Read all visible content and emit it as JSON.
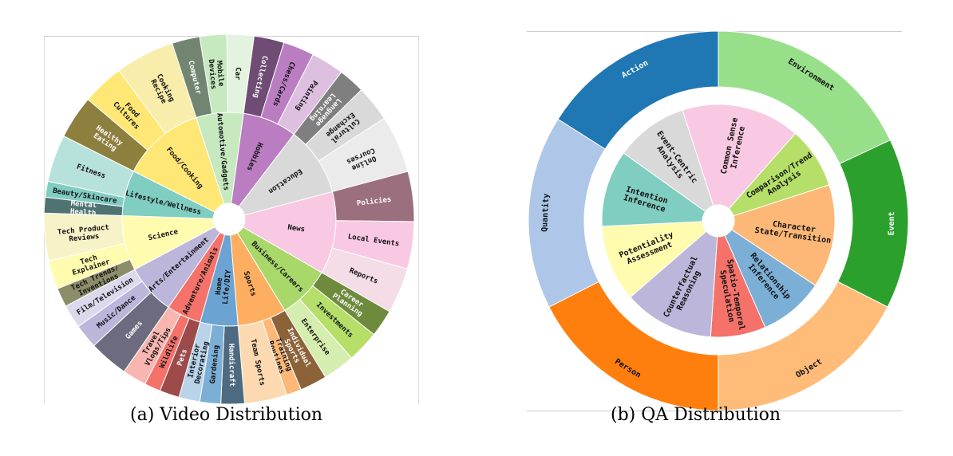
{
  "chart_data": [
    {
      "type": "sunburst",
      "caption": "(a) Video Distribution",
      "categories": [
        {
          "name": "News",
          "color": "#F9C9E3",
          "share": 0.105,
          "children": [
            {
              "name": "Policies",
              "color": "#9C6F7E",
              "share": 0.35
            },
            {
              "name": "Local Events",
              "color": "#F9C9E3",
              "share": 0.33
            },
            {
              "name": "Reports",
              "color": "#F5DDE8",
              "share": 0.32
            }
          ]
        },
        {
          "name": "Business/Careers",
          "color": "#A8D86A",
          "share": 0.067,
          "children": [
            {
              "name": "Career Planning",
              "color": "#6E8B3D",
              "share": 0.3
            },
            {
              "name": "Investments",
              "color": "#B5DF68",
              "share": 0.35
            },
            {
              "name": "Enterprise",
              "color": "#D6EDB0",
              "share": 0.35
            }
          ]
        },
        {
          "name": "Sports",
          "color": "#FDAE61",
          "share": 0.062,
          "children": [
            {
              "name": "Individual Sports",
              "color": "#8C6239",
              "share": 0.32
            },
            {
              "name": "Training Routines",
              "color": "#FDB877",
              "share": 0.18
            },
            {
              "name": "Team Sports",
              "color": "#FCD9B0",
              "share": 0.5
            }
          ]
        },
        {
          "name": "Home Life/DIY",
          "color": "#6BA3D2",
          "share": 0.048,
          "children": [
            {
              "name": "Handicraft",
              "color": "#4E6A80",
              "share": 0.36
            },
            {
              "name": "Gardening",
              "color": "#7BAFD6",
              "share": 0.32
            },
            {
              "name": "Interior Decorating",
              "color": "#B8D3EA",
              "share": 0.32
            }
          ]
        },
        {
          "name": "Adventure/Animals",
          "color": "#F4726A",
          "share": 0.044,
          "children": [
            {
              "name": "Pets",
              "color": "#9C4A4A",
              "share": 0.33
            },
            {
              "name": "Wildlife",
              "color": "#F4726A",
              "share": 0.27
            },
            {
              "name": "Travel Vlogs/Tips",
              "color": "#F9B6B0",
              "share": 0.4
            }
          ]
        },
        {
          "name": "Arts/Entertainment",
          "color": "#BCB6DA",
          "share": 0.064,
          "children": [
            {
              "name": "Games",
              "color": "#6C6B7F",
              "share": 0.45
            },
            {
              "name": "Music/Dance",
              "color": "#BCB6DA",
              "share": 0.28
            },
            {
              "name": "Film/Television",
              "color": "#DCD9EC",
              "share": 0.27
            }
          ]
        },
        {
          "name": "Science",
          "color": "#FFFBAF",
          "share": 0.07,
          "children": [
            {
              "name": "Tech Trends/ Inventions",
              "color": "#8D8D6A",
              "share": 0.2
            },
            {
              "name": "Tech Explainer",
              "color": "#FFFBAF",
              "share": 0.3
            },
            {
              "name": "Tech Product Reviews",
              "color": "#F7F3C8",
              "share": 0.5
            }
          ]
        },
        {
          "name": "Lifestyle/Wellness",
          "color": "#80CDC1",
          "share": 0.058,
          "children": [
            {
              "name": "Mental Health",
              "color": "#4F7371",
              "share": 0.2
            },
            {
              "name": "Beauty/Skincare",
              "color": "#80CDC1",
              "share": 0.2
            },
            {
              "name": "Fitness",
              "color": "#B7E2DB",
              "share": 0.6
            }
          ]
        },
        {
          "name": "Food/Cooking",
          "color": "#FFE775",
          "share": 0.106,
          "children": [
            {
              "name": "Healthy Eating",
              "color": "#8D7F3D",
              "share": 0.3
            },
            {
              "name": "Food Cultures",
              "color": "#FFE775",
              "share": 0.29
            },
            {
              "name": "Cooking Recipe",
              "color": "#F8EDAA",
              "share": 0.41
            }
          ]
        },
        {
          "name": "Automotive/Gadgets",
          "color": "#C7E9C0",
          "share": 0.06,
          "children": [
            {
              "name": "Computer",
              "color": "#728570",
              "share": 0.34
            },
            {
              "name": "Mobile Devices",
              "color": "#C7E9C0",
              "share": 0.33
            },
            {
              "name": "Car",
              "color": "#E3F3DF",
              "share": 0.33
            }
          ]
        },
        {
          "name": "Hobbies",
          "color": "#BA7DC1",
          "share": 0.069,
          "children": [
            {
              "name": "Collecting",
              "color": "#6E4C74",
              "share": 0.32
            },
            {
              "name": "Chess/Cards",
              "color": "#BA7DC1",
              "share": 0.33
            },
            {
              "name": "Painting",
              "color": "#DDBFE0",
              "share": 0.35
            }
          ]
        },
        {
          "name": "Education",
          "color": "#D9D9D9",
          "share": 0.088,
          "children": [
            {
              "name": "Language Learning",
              "color": "#7F7F7F",
              "share": 0.22
            },
            {
              "name": "Cultural Exchange",
              "color": "#D9D9D9",
              "share": 0.3
            },
            {
              "name": "Online Courses",
              "color": "#EBEBEB",
              "share": 0.48
            }
          ]
        }
      ]
    },
    {
      "type": "sunburst",
      "caption": "(b) QA Distribution",
      "inner": [
        {
          "name": "Common Sense Inference",
          "color": "#F9C9E3",
          "share": 0.155
        },
        {
          "name": "Comparison/Trend Analysis",
          "color": "#B5DF68",
          "share": 0.08
        },
        {
          "name": "Character State/Transition",
          "color": "#FDB877",
          "share": 0.135
        },
        {
          "name": "Relationship Inference",
          "color": "#7BAFD6",
          "share": 0.085
        },
        {
          "name": "Spatio-Temporal Speculation",
          "color": "#F4726A",
          "share": 0.072
        },
        {
          "name": "Counterfactual Reasoning",
          "color": "#BCB6DA",
          "share": 0.118
        },
        {
          "name": "Potentiality Assessment",
          "color": "#FFFBAF",
          "share": 0.1
        },
        {
          "name": "Intention Inference",
          "color": "#80CDC1",
          "share": 0.1
        },
        {
          "name": "Event-Centric Analysis",
          "color": "#D9D9D9",
          "share": 0.095
        }
      ],
      "outer": [
        {
          "name": "Environment",
          "color": "#98DF8A",
          "share": 0.18
        },
        {
          "name": "Event",
          "color": "#2CA02C",
          "share": 0.145
        },
        {
          "name": "Object",
          "color": "#FFBB78",
          "share": 0.175
        },
        {
          "name": "Person",
          "color": "#FF7F0E",
          "share": 0.175
        },
        {
          "name": "Quantity",
          "color": "#AEC7E8",
          "share": 0.165
        },
        {
          "name": "Action",
          "color": "#1F77B4",
          "share": 0.16
        }
      ]
    }
  ]
}
